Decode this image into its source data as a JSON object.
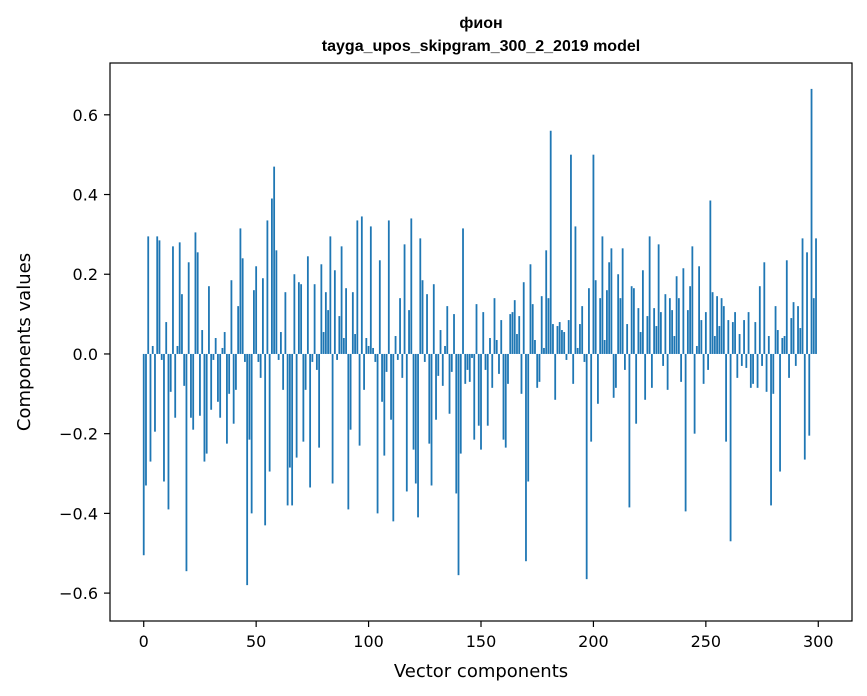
{
  "chart_data": {
    "type": "bar",
    "title_line1": "фион",
    "title_line2": "tayga_upos_skipgram_300_2_2019 model",
    "xlabel": "Vector components",
    "ylabel": "Components values",
    "xlim": [
      -15,
      315
    ],
    "ylim": [
      -0.67,
      0.73
    ],
    "x_ticks": [
      0,
      50,
      100,
      150,
      200,
      250,
      300
    ],
    "x_tick_labels": [
      "0",
      "50",
      "100",
      "150",
      "200",
      "250",
      "300"
    ],
    "y_ticks": [
      -0.6,
      -0.4,
      -0.2,
      0.0,
      0.2,
      0.4,
      0.6
    ],
    "y_tick_labels": [
      "−0.6",
      "−0.4",
      "−0.2",
      "0.0",
      "0.2",
      "0.4",
      "0.6"
    ],
    "bar_color": "#1f77b4",
    "x": "indices 0..299",
    "values": [
      -0.505,
      -0.33,
      0.295,
      -0.27,
      0.02,
      -0.195,
      0.295,
      0.285,
      -0.015,
      -0.32,
      0.08,
      -0.39,
      -0.095,
      0.27,
      -0.16,
      0.02,
      0.28,
      0.15,
      -0.08,
      -0.545,
      0.23,
      -0.16,
      -0.19,
      0.305,
      0.255,
      -0.155,
      0.06,
      -0.27,
      -0.25,
      0.17,
      -0.14,
      -0.015,
      0.04,
      -0.12,
      -0.16,
      0.015,
      0.055,
      -0.225,
      -0.1,
      0.185,
      -0.175,
      -0.09,
      0.12,
      0.315,
      0.24,
      -0.02,
      -0.58,
      -0.215,
      -0.4,
      0.16,
      0.22,
      -0.02,
      -0.06,
      0.19,
      -0.43,
      0.335,
      -0.295,
      0.39,
      0.47,
      0.26,
      -0.015,
      0.055,
      -0.09,
      0.155,
      -0.38,
      -0.285,
      -0.38,
      0.2,
      -0.26,
      0.18,
      0.175,
      -0.22,
      -0.09,
      0.245,
      -0.335,
      -0.02,
      0.175,
      -0.04,
      -0.235,
      0.225,
      0.055,
      0.155,
      0.11,
      0.295,
      -0.325,
      0.21,
      -0.015,
      0.095,
      0.27,
      0.04,
      0.165,
      -0.39,
      -0.19,
      0.155,
      0.05,
      0.335,
      -0.23,
      0.345,
      -0.09,
      0.04,
      0.02,
      0.32,
      0.015,
      -0.02,
      -0.4,
      0.235,
      -0.12,
      -0.255,
      -0.045,
      0.335,
      -0.165,
      -0.42,
      0.045,
      -0.015,
      0.14,
      -0.06,
      0.275,
      -0.345,
      0.11,
      0.34,
      -0.24,
      -0.325,
      -0.41,
      0.29,
      0.185,
      -0.02,
      0.15,
      -0.225,
      -0.33,
      0.175,
      -0.165,
      -0.055,
      0.06,
      -0.08,
      0.02,
      0.12,
      -0.15,
      -0.045,
      0.1,
      -0.35,
      -0.555,
      -0.25,
      0.315,
      -0.075,
      -0.04,
      -0.07,
      -0.01,
      -0.215,
      0.125,
      -0.18,
      -0.24,
      0.105,
      -0.04,
      -0.18,
      0.04,
      -0.085,
      0.14,
      0.035,
      -0.05,
      0.085,
      -0.215,
      -0.235,
      -0.075,
      0.1,
      0.105,
      0.135,
      0.05,
      0.095,
      -0.1,
      0.18,
      -0.52,
      -0.32,
      0.225,
      0.125,
      0.035,
      -0.085,
      -0.07,
      0.145,
      0.015,
      0.26,
      0.14,
      0.56,
      0.075,
      -0.115,
      0.07,
      0.08,
      0.06,
      0.055,
      -0.015,
      0.085,
      0.5,
      -0.075,
      0.32,
      0.015,
      0.075,
      0.12,
      -0.02,
      -0.565,
      0.165,
      -0.22,
      0.5,
      0.185,
      -0.125,
      0.14,
      0.295,
      0.035,
      0.16,
      0.23,
      0.265,
      -0.11,
      -0.085,
      0.2,
      0.14,
      0.265,
      -0.04,
      0.075,
      -0.385,
      0.17,
      0.165,
      -0.175,
      0.115,
      0.055,
      0.21,
      -0.115,
      0.095,
      0.295,
      -0.085,
      0.115,
      0.07,
      0.275,
      0.105,
      -0.03,
      0.15,
      -0.09,
      0.14,
      0.11,
      0.045,
      0.195,
      0.14,
      -0.07,
      0.215,
      -0.395,
      0.11,
      0.17,
      0.27,
      -0.2,
      0.02,
      0.22,
      0.085,
      -0.075,
      0.105,
      -0.04,
      0.385,
      0.155,
      0.045,
      0.145,
      0.07,
      0.14,
      0.12,
      -0.22,
      0.085,
      -0.47,
      0.08,
      0.105,
      -0.06,
      0.05,
      -0.03,
      0.085,
      -0.035,
      0.105,
      -0.085,
      -0.075,
      0.08,
      -0.085,
      0.17,
      -0.03,
      0.23,
      -0.095,
      0.045,
      -0.38,
      -0.1,
      0.12,
      0.06,
      -0.295,
      0.04,
      0.045,
      0.235,
      -0.06,
      0.09,
      0.13,
      -0.03,
      0.12,
      0.065,
      0.29,
      -0.265,
      0.255,
      -0.205,
      0.665,
      0.14,
      0.29
    ]
  }
}
